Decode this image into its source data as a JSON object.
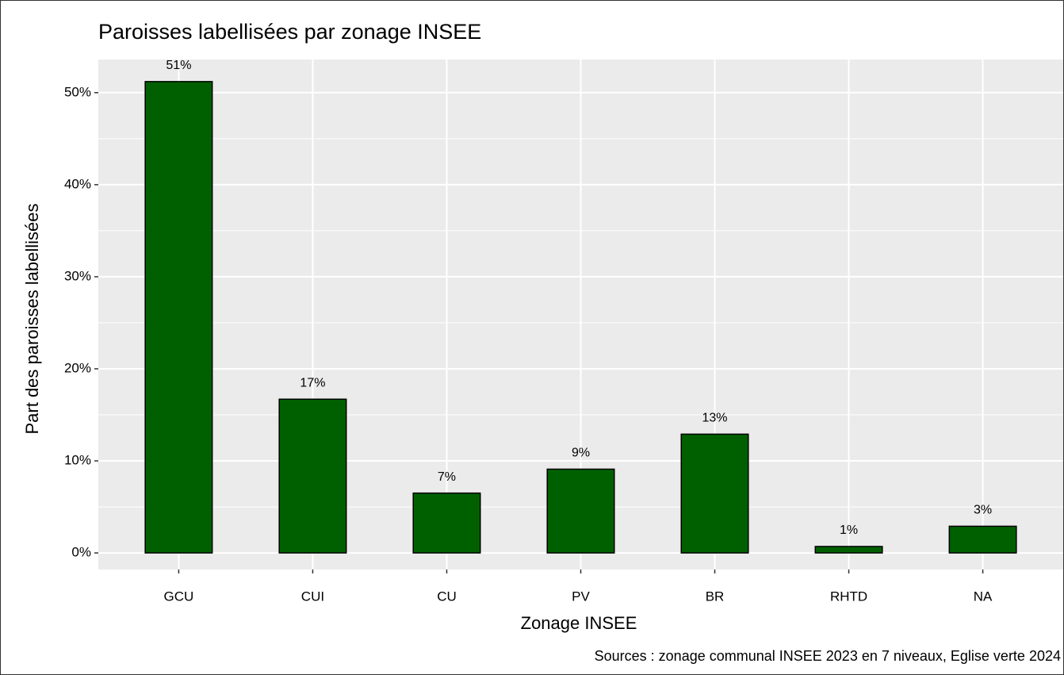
{
  "chart_data": {
    "type": "bar",
    "title": "Paroisses labellisées par zonage INSEE",
    "x_label": "Zonage INSEE",
    "y_label": "Part des paroisses labellisées",
    "caption": "Sources : zonage communal INSEE 2023 en 7 niveaux, Eglise verte 2024",
    "categories": [
      "GCU",
      "CUI",
      "CU",
      "PV",
      "BR",
      "RHTD",
      "NA"
    ],
    "values": [
      51.2,
      16.7,
      6.5,
      9.1,
      12.9,
      0.7,
      2.9
    ],
    "value_labels": [
      "51%",
      "17%",
      "7%",
      "9%",
      "13%",
      "1%",
      "3%"
    ],
    "color": "#006000",
    "ylim": [
      -1.8,
      53.6
    ],
    "yticks": [
      {
        "value": 0,
        "label": "0%"
      },
      {
        "value": 10,
        "label": "10%"
      },
      {
        "value": 20,
        "label": "20%"
      },
      {
        "value": 30,
        "label": "30%"
      },
      {
        "value": 40,
        "label": "40%"
      },
      {
        "value": 50,
        "label": "50%"
      }
    ],
    "grid": true
  }
}
